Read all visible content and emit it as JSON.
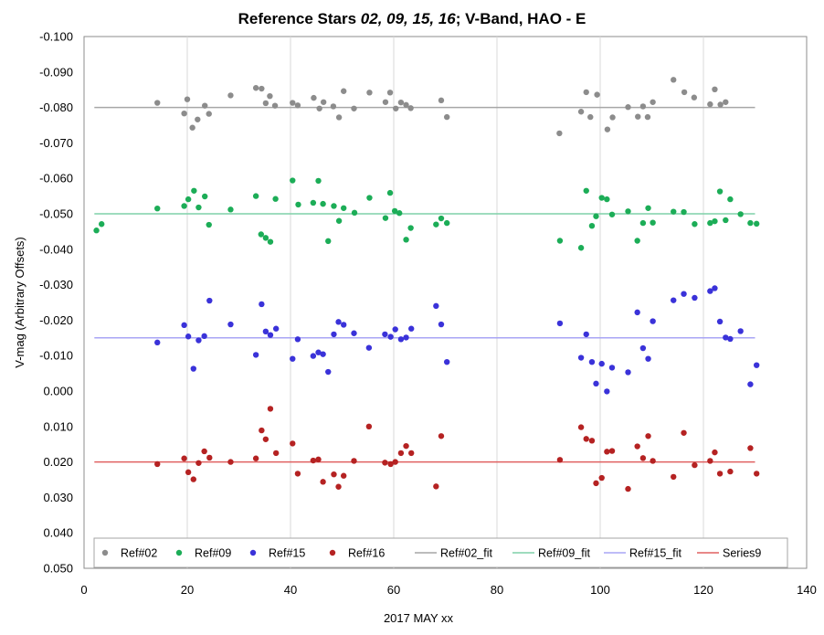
{
  "chart_data": {
    "type": "scatter",
    "title_parts": [
      {
        "text": "Reference Stars ",
        "italic": false
      },
      {
        "text": "02, 09, 15, 16",
        "italic": true
      },
      {
        "text": "; V-Band, HAO - E",
        "italic": false
      }
    ],
    "xlabel": "2017 MAY xx",
    "ylabel": "V-mag (Arbitrary Offsets)",
    "xlim": [
      0,
      140
    ],
    "ylim": [
      -0.1,
      0.05
    ],
    "y_reversed": true,
    "x_ticks": [
      "0",
      "20",
      "40",
      "60",
      "80",
      "100",
      "120",
      "140"
    ],
    "y_ticks": [
      "-0.100",
      "-0.090",
      "-0.080",
      "-0.070",
      "-0.060",
      "-0.050",
      "-0.040",
      "-0.030",
      "-0.020",
      "-0.010",
      "0.000",
      "0.010",
      "0.020",
      "0.030",
      "0.040",
      "0.050"
    ],
    "grid": {
      "vertical": true,
      "horizontal": false
    },
    "legend_position": "bottom",
    "series": [
      {
        "name": "Ref#02",
        "kind": "points",
        "color": "#8c8c8c",
        "points": [
          [
            14.2,
            -0.0813
          ],
          [
            19.4,
            -0.0783
          ],
          [
            20,
            -0.0823
          ],
          [
            21,
            -0.0743
          ],
          [
            22.0,
            -0.0766
          ],
          [
            23.4,
            -0.0805
          ],
          [
            24.2,
            -0.0782
          ],
          [
            28.4,
            -0.0834
          ],
          [
            33.3,
            -0.0855
          ],
          [
            34.4,
            -0.0853
          ],
          [
            35.2,
            -0.0812
          ],
          [
            36.0,
            -0.0832
          ],
          [
            37.0,
            -0.0805
          ],
          [
            40.4,
            -0.0813
          ],
          [
            41.4,
            -0.0806
          ],
          [
            44.5,
            -0.0827
          ],
          [
            45.6,
            -0.0797
          ],
          [
            46.4,
            -0.0815
          ],
          [
            48.3,
            -0.0803
          ],
          [
            49.4,
            -0.0772
          ],
          [
            50.3,
            -0.0846
          ],
          [
            52.3,
            -0.0797
          ],
          [
            55.3,
            -0.0842
          ],
          [
            58.4,
            -0.0815
          ],
          [
            59.3,
            -0.0842
          ],
          [
            60.4,
            -0.0797
          ],
          [
            61.4,
            -0.0814
          ],
          [
            62.4,
            -0.0807
          ],
          [
            63.3,
            -0.0798
          ],
          [
            69.2,
            -0.082
          ],
          [
            70.3,
            -0.0773
          ],
          [
            92.1,
            -0.0727
          ],
          [
            96.3,
            -0.0788
          ],
          [
            97.3,
            -0.0843
          ],
          [
            98.1,
            -0.0773
          ],
          [
            99.4,
            -0.0836
          ],
          [
            101.4,
            -0.0738
          ],
          [
            102.4,
            -0.0772
          ],
          [
            105.4,
            -0.0801
          ],
          [
            107.3,
            -0.0774
          ],
          [
            108.3,
            -0.0803
          ],
          [
            109.2,
            -0.0773
          ],
          [
            110.2,
            -0.0815
          ],
          [
            114.2,
            -0.0878
          ],
          [
            116.3,
            -0.0843
          ],
          [
            118.2,
            -0.0828
          ],
          [
            121.3,
            -0.0809
          ],
          [
            122.2,
            -0.0851
          ],
          [
            123.3,
            -0.0808
          ],
          [
            124.3,
            -0.0815
          ]
        ]
      },
      {
        "name": "Ref#09",
        "kind": "points",
        "color": "#1cad57",
        "points": [
          [
            2.4,
            -0.0453
          ],
          [
            3.4,
            -0.0471
          ],
          [
            14.2,
            -0.0515
          ],
          [
            19.4,
            -0.0522
          ],
          [
            20.2,
            -0.0541
          ],
          [
            21.3,
            -0.0565
          ],
          [
            22.2,
            -0.0518
          ],
          [
            23.4,
            -0.0549
          ],
          [
            24.2,
            -0.0469
          ],
          [
            28.4,
            -0.0512
          ],
          [
            33.3,
            -0.055
          ],
          [
            34.3,
            -0.0442
          ],
          [
            35.2,
            -0.0432
          ],
          [
            36.1,
            -0.0421
          ],
          [
            37.1,
            -0.0542
          ],
          [
            40.4,
            -0.0594
          ],
          [
            41.5,
            -0.0526
          ],
          [
            44.4,
            -0.0531
          ],
          [
            45.4,
            -0.0593
          ],
          [
            46.3,
            -0.0528
          ],
          [
            47.3,
            -0.0423
          ],
          [
            48.4,
            -0.0522
          ],
          [
            49.4,
            -0.048
          ],
          [
            50.3,
            -0.0516
          ],
          [
            52.4,
            -0.0503
          ],
          [
            55.3,
            -0.0545
          ],
          [
            58.4,
            -0.0488
          ],
          [
            59.3,
            -0.0559
          ],
          [
            60.2,
            -0.0508
          ],
          [
            61.1,
            -0.0502
          ],
          [
            62.4,
            -0.0427
          ],
          [
            63.3,
            -0.046
          ],
          [
            68.2,
            -0.047
          ],
          [
            69.2,
            -0.0487
          ],
          [
            70.3,
            -0.0474
          ],
          [
            92.2,
            -0.0424
          ],
          [
            96.3,
            -0.0404
          ],
          [
            97.3,
            -0.0565
          ],
          [
            98.4,
            -0.0466
          ],
          [
            99.2,
            -0.0493
          ],
          [
            100.3,
            -0.0545
          ],
          [
            101.3,
            -0.0541
          ],
          [
            102.3,
            -0.0498
          ],
          [
            105.4,
            -0.0507
          ],
          [
            107.2,
            -0.0424
          ],
          [
            108.3,
            -0.0474
          ],
          [
            109.3,
            -0.0516
          ],
          [
            110.2,
            -0.0475
          ],
          [
            114.2,
            -0.0506
          ],
          [
            116.2,
            -0.0505
          ],
          [
            118.3,
            -0.0471
          ],
          [
            121.3,
            -0.0474
          ],
          [
            122.2,
            -0.0479
          ],
          [
            123.2,
            -0.0563
          ],
          [
            124.3,
            -0.0482
          ],
          [
            125.2,
            -0.0541
          ],
          [
            127.2,
            -0.0499
          ],
          [
            129.1,
            -0.0474
          ],
          [
            130.3,
            -0.0472
          ]
        ]
      },
      {
        "name": "Ref#15",
        "kind": "points",
        "color": "#3a32d9",
        "points": [
          [
            14.2,
            -0.0137
          ],
          [
            19.4,
            -0.0186
          ],
          [
            20.2,
            -0.0154
          ],
          [
            21.2,
            -0.0063
          ],
          [
            22.2,
            -0.0143
          ],
          [
            23.3,
            -0.0155
          ],
          [
            24.3,
            -0.0255
          ],
          [
            28.4,
            -0.0188
          ],
          [
            33.3,
            -0.0102
          ],
          [
            34.4,
            -0.0245
          ],
          [
            35.2,
            -0.0168
          ],
          [
            36.1,
            -0.0158
          ],
          [
            37.2,
            -0.0176
          ],
          [
            40.4,
            -0.0091
          ],
          [
            41.4,
            -0.0146
          ],
          [
            44.4,
            -0.0099
          ],
          [
            45.4,
            -0.0109
          ],
          [
            46.3,
            -0.0104
          ],
          [
            47.3,
            -0.0054
          ],
          [
            48.4,
            -0.016
          ],
          [
            49.3,
            -0.0195
          ],
          [
            50.3,
            -0.0187
          ],
          [
            52.3,
            -0.0163
          ],
          [
            55.2,
            -0.0122
          ],
          [
            58.3,
            -0.016
          ],
          [
            59.4,
            -0.0153
          ],
          [
            60.3,
            -0.0174
          ],
          [
            61.4,
            -0.0146
          ],
          [
            62.4,
            -0.0151
          ],
          [
            63.4,
            -0.0176
          ],
          [
            68.2,
            -0.024
          ],
          [
            69.2,
            -0.0188
          ],
          [
            70.3,
            -0.0082
          ],
          [
            92.2,
            -0.0191
          ],
          [
            96.3,
            -0.0094
          ],
          [
            97.3,
            -0.016
          ],
          [
            98.4,
            -0.0082
          ],
          [
            99.2,
            -0.0021
          ],
          [
            100.3,
            -0.0077
          ],
          [
            101.3,
            0.0001
          ],
          [
            102.3,
            -0.0066
          ],
          [
            105.4,
            -0.0053
          ],
          [
            107.2,
            -0.0222
          ],
          [
            108.3,
            -0.0121
          ],
          [
            109.3,
            -0.0091
          ],
          [
            110.2,
            -0.0197
          ],
          [
            114.2,
            -0.0256
          ],
          [
            116.2,
            -0.0274
          ],
          [
            118.3,
            -0.0263
          ],
          [
            121.3,
            -0.0282
          ],
          [
            122.2,
            -0.029
          ],
          [
            123.2,
            -0.0196
          ],
          [
            124.3,
            -0.0151
          ],
          [
            125.2,
            -0.0147
          ],
          [
            127.2,
            -0.0169
          ],
          [
            129.1,
            -0.0019
          ],
          [
            130.3,
            -0.0073
          ]
        ]
      },
      {
        "name": "Ref#16",
        "kind": "points",
        "color": "#b52222",
        "points": [
          [
            14.2,
            0.0206
          ],
          [
            19.4,
            0.019
          ],
          [
            20.2,
            0.0229
          ],
          [
            21.2,
            0.0249
          ],
          [
            22.2,
            0.0203
          ],
          [
            23.3,
            0.017
          ],
          [
            24.3,
            0.0188
          ],
          [
            28.4,
            0.02
          ],
          [
            33.3,
            0.019
          ],
          [
            34.4,
            0.0111
          ],
          [
            35.2,
            0.0136
          ],
          [
            36.1,
            0.005
          ],
          [
            37.2,
            0.0175
          ],
          [
            40.4,
            0.0148
          ],
          [
            41.4,
            0.0233
          ],
          [
            44.4,
            0.0196
          ],
          [
            45.4,
            0.0193
          ],
          [
            46.3,
            0.0256
          ],
          [
            48.4,
            0.0235
          ],
          [
            49.3,
            0.027
          ],
          [
            50.3,
            0.0239
          ],
          [
            52.3,
            0.0197
          ],
          [
            55.2,
            0.01
          ],
          [
            58.3,
            0.0202
          ],
          [
            59.4,
            0.0206
          ],
          [
            60.3,
            0.02
          ],
          [
            61.4,
            0.0175
          ],
          [
            62.4,
            0.0155
          ],
          [
            63.4,
            0.0175
          ],
          [
            68.2,
            0.0269
          ],
          [
            69.2,
            0.0127
          ],
          [
            92.2,
            0.0194
          ],
          [
            96.3,
            0.0102
          ],
          [
            97.3,
            0.0135
          ],
          [
            98.4,
            0.014
          ],
          [
            99.2,
            0.026
          ],
          [
            100.3,
            0.0245
          ],
          [
            101.3,
            0.0171
          ],
          [
            102.3,
            0.0169
          ],
          [
            105.4,
            0.0276
          ],
          [
            107.2,
            0.0156
          ],
          [
            108.3,
            0.0189
          ],
          [
            109.3,
            0.0127
          ],
          [
            110.2,
            0.0197
          ],
          [
            114.2,
            0.0242
          ],
          [
            116.2,
            0.0118
          ],
          [
            118.3,
            0.0209
          ],
          [
            121.3,
            0.0197
          ],
          [
            122.2,
            0.0173
          ],
          [
            123.2,
            0.0233
          ],
          [
            125.2,
            0.0227
          ],
          [
            129.1,
            0.0161
          ],
          [
            130.3,
            0.0233
          ]
        ]
      },
      {
        "name": "Ref#02_fit",
        "kind": "line",
        "color": "#a6a6a6",
        "x": [
          2,
          130
        ],
        "values": [
          -0.08,
          -0.08
        ]
      },
      {
        "name": "Ref#09_fit",
        "kind": "line",
        "color": "#7fd1a8",
        "x": [
          2,
          130
        ],
        "values": [
          -0.05,
          -0.05
        ]
      },
      {
        "name": "Ref#15_fit",
        "kind": "line",
        "color": "#a9a5f5",
        "x": [
          2,
          130
        ],
        "values": [
          -0.015,
          -0.015
        ]
      },
      {
        "name": "Series9",
        "kind": "line",
        "color": "#e06060",
        "x": [
          2,
          130
        ],
        "values": [
          0.02,
          0.02
        ]
      }
    ]
  }
}
